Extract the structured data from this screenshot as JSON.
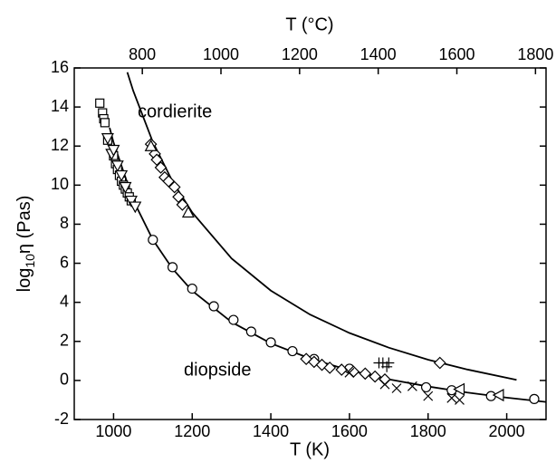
{
  "chart_data": {
    "type": "scatter",
    "x_label": "T (K)",
    "x2_label": "T (°C)",
    "y_label": {
      "main": "log",
      "sub": "10",
      "rest": "η (Pas)"
    },
    "xlim": [
      900,
      2100
    ],
    "xticks": [
      1000,
      1200,
      1400,
      1600,
      1800,
      2000
    ],
    "x2lim": [
      626.85,
      1826.85
    ],
    "x2ticks": [
      800,
      1000,
      1200,
      1400,
      1600,
      1800
    ],
    "ylim": [
      -2,
      16
    ],
    "yticks": [
      -2,
      0,
      2,
      4,
      6,
      8,
      10,
      12,
      14,
      16
    ],
    "color": "#000000",
    "annotations": [
      "cordierite",
      "diopside"
    ],
    "curves": [
      {
        "x": [
          1035,
          1050,
          1100,
          1150,
          1200,
          1300,
          1400,
          1500,
          1600,
          1700,
          1800,
          1900,
          2025
        ],
        "y": [
          15.78,
          14.83,
          12.2,
          10.19,
          8.6,
          6.25,
          4.6,
          3.37,
          2.43,
          1.68,
          1.06,
          0.56,
          0.03
        ]
      },
      {
        "x": [
          990,
          1000,
          1050,
          1100,
          1150,
          1200,
          1300,
          1400,
          1500,
          1600,
          1700,
          1800,
          1900,
          2000,
          2100
        ],
        "y": [
          12.94,
          12.18,
          9.23,
          7.2,
          5.72,
          4.59,
          2.99,
          1.9,
          1.12,
          0.52,
          0.06,
          -0.31,
          -0.62,
          -0.88,
          -1.1
        ]
      }
    ],
    "markers": [
      {
        "marker": "circle",
        "x": [
          1100,
          1150,
          1200,
          1255,
          1305,
          1350,
          1400,
          1455,
          1510,
          1600,
          1795,
          1860,
          1960,
          2070
        ],
        "y": [
          7.2,
          5.8,
          4.7,
          3.8,
          3.1,
          2.5,
          1.95,
          1.5,
          1.1,
          0.6,
          -0.35,
          -0.5,
          -0.8,
          -0.95
        ]
      },
      {
        "marker": "square",
        "x": [
          965,
          972,
          975,
          978,
          985,
          1000,
          1005,
          1010,
          1015,
          1020,
          1025,
          1030,
          1035,
          1040,
          1045
        ],
        "y": [
          14.2,
          13.7,
          13.4,
          13.2,
          12.3,
          11.5,
          11.1,
          10.8,
          10.5,
          10.2,
          10.0,
          9.8,
          9.6,
          9.4,
          9.2
        ]
      },
      {
        "marker": "triangle-down",
        "x": [
          985,
          995,
          1000,
          1010,
          1020,
          1030,
          1045,
          1055
        ],
        "y": [
          12.4,
          11.6,
          11.8,
          11.0,
          10.5,
          9.9,
          9.2,
          8.9
        ]
      },
      {
        "marker": "diamond",
        "x": [
          1095,
          1105,
          1110,
          1120,
          1130,
          1140,
          1155,
          1165,
          1175,
          1830,
          1490,
          1510,
          1530,
          1550,
          1580,
          1610,
          1640,
          1665,
          1690
        ],
        "y": [
          12.1,
          11.6,
          11.3,
          10.9,
          10.4,
          10.2,
          9.9,
          9.4,
          9.0,
          0.9,
          1.1,
          0.95,
          0.8,
          0.65,
          0.55,
          0.45,
          0.35,
          0.2,
          0.05
        ]
      },
      {
        "marker": "triangle-up",
        "x": [
          1095,
          1190
        ],
        "y": [
          12.0,
          8.6
        ]
      },
      {
        "marker": "cross",
        "x": [
          1600,
          1690,
          1720,
          1760,
          1800,
          1860,
          1880
        ],
        "y": [
          0.4,
          -0.2,
          -0.4,
          -0.3,
          -0.8,
          -0.9,
          -1.0
        ]
      },
      {
        "marker": "plus",
        "x": [
          1675,
          1685,
          1700,
          1695
        ],
        "y": [
          0.9,
          0.9,
          0.9,
          0.7
        ]
      },
      {
        "marker": "triangle-left",
        "x": [
          1880,
          1980
        ],
        "y": [
          -0.45,
          -0.75
        ]
      }
    ]
  }
}
